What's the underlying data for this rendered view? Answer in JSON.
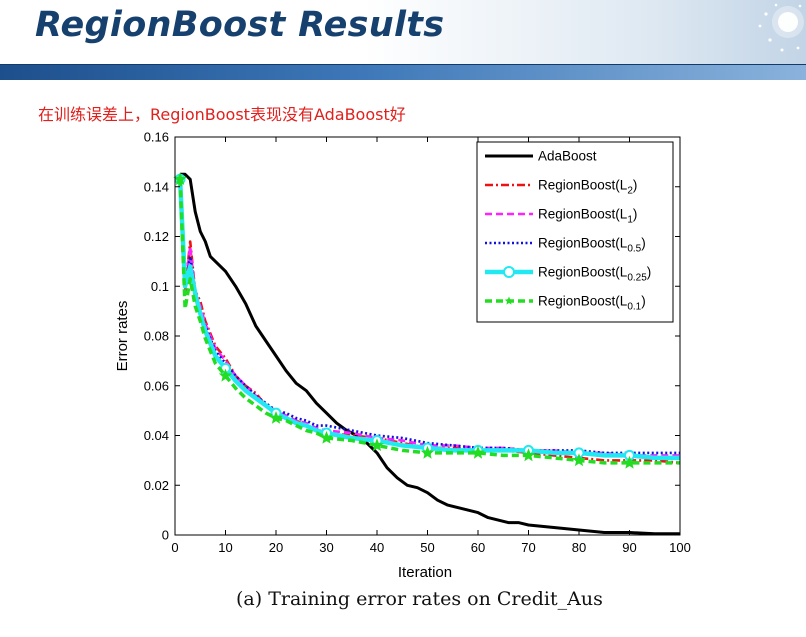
{
  "slide": {
    "title": "RegionBoost Results",
    "subtitle": "在训练误差上，RegionBoost表现没有AdaBoost好",
    "caption": "(a) Training error rates on Credit_Aus"
  },
  "chart_data": {
    "type": "line",
    "title": "",
    "xlabel": "Iteration",
    "ylabel": "Error rates",
    "xlim": [
      0,
      100
    ],
    "ylim": [
      0,
      0.16
    ],
    "xticks": [
      0,
      10,
      20,
      30,
      40,
      50,
      60,
      70,
      80,
      90,
      100
    ],
    "yticks": [
      0,
      0.02,
      0.04,
      0.06,
      0.08,
      0.1,
      0.12,
      0.14,
      0.16
    ],
    "ytick_labels": [
      "0",
      "0.02",
      "0.04",
      "0.06",
      "0.08",
      "0.1",
      "0.12",
      "0.14",
      "0.16"
    ],
    "grid": false,
    "legend_position": "top-right",
    "series": [
      {
        "name": "AdaBoost",
        "legend": {
          "base": "AdaBoost",
          "sub": ""
        },
        "color": "#000000",
        "style": "solid",
        "marker": "none",
        "x": [
          1,
          2,
          3,
          4,
          5,
          6,
          7,
          8,
          10,
          12,
          14,
          16,
          18,
          20,
          22,
          24,
          26,
          28,
          30,
          32,
          34,
          36,
          38,
          40,
          42,
          44,
          46,
          48,
          50,
          52,
          54,
          56,
          58,
          60,
          62,
          64,
          66,
          68,
          70,
          75,
          80,
          85,
          90,
          95,
          100
        ],
        "y": [
          0.145,
          0.145,
          0.143,
          0.13,
          0.122,
          0.118,
          0.112,
          0.11,
          0.106,
          0.1,
          0.093,
          0.084,
          0.078,
          0.072,
          0.066,
          0.061,
          0.058,
          0.053,
          0.049,
          0.045,
          0.042,
          0.04,
          0.037,
          0.033,
          0.027,
          0.023,
          0.02,
          0.019,
          0.017,
          0.014,
          0.012,
          0.011,
          0.01,
          0.009,
          0.007,
          0.006,
          0.005,
          0.005,
          0.004,
          0.003,
          0.002,
          0.001,
          0.001,
          0.0005,
          0.0005
        ]
      },
      {
        "name": "RegionBoost(L2)",
        "legend": {
          "base": "RegionBoost(L",
          "sub": "2"
        },
        "color": "#ee1111",
        "style": "dashdot",
        "marker": "none",
        "x": [
          1,
          2,
          3,
          4,
          5,
          6,
          8,
          10,
          12,
          14,
          16,
          18,
          20,
          22,
          24,
          26,
          28,
          30,
          35,
          40,
          45,
          50,
          55,
          60,
          65,
          70,
          75,
          80,
          85,
          90,
          95,
          100
        ],
        "y": [
          0.143,
          0.098,
          0.118,
          0.098,
          0.094,
          0.086,
          0.076,
          0.071,
          0.064,
          0.06,
          0.057,
          0.052,
          0.049,
          0.047,
          0.046,
          0.044,
          0.042,
          0.041,
          0.04,
          0.039,
          0.037,
          0.035,
          0.035,
          0.034,
          0.034,
          0.033,
          0.032,
          0.031,
          0.03,
          0.03,
          0.03,
          0.029
        ]
      },
      {
        "name": "RegionBoost(L1)",
        "legend": {
          "base": "RegionBoost(L",
          "sub": "1"
        },
        "color": "#ff22ff",
        "style": "dashed",
        "marker": "none",
        "x": [
          1,
          2,
          3,
          4,
          5,
          6,
          8,
          10,
          12,
          14,
          16,
          18,
          20,
          22,
          24,
          26,
          28,
          30,
          35,
          40,
          45,
          50,
          55,
          60,
          65,
          70,
          75,
          80,
          85,
          90,
          95,
          100
        ],
        "y": [
          0.143,
          0.099,
          0.116,
          0.097,
          0.092,
          0.085,
          0.075,
          0.07,
          0.064,
          0.06,
          0.056,
          0.052,
          0.05,
          0.048,
          0.046,
          0.045,
          0.043,
          0.042,
          0.041,
          0.039,
          0.038,
          0.036,
          0.036,
          0.035,
          0.035,
          0.034,
          0.034,
          0.033,
          0.033,
          0.032,
          0.032,
          0.032
        ]
      },
      {
        "name": "RegionBoost(L0.5)",
        "legend": {
          "base": "RegionBoost(L",
          "sub": "0.5"
        },
        "color": "#1111dd",
        "style": "dotted",
        "marker": "none",
        "x": [
          1,
          2,
          3,
          4,
          5,
          6,
          8,
          10,
          12,
          14,
          16,
          18,
          20,
          22,
          24,
          26,
          28,
          30,
          35,
          40,
          45,
          50,
          55,
          60,
          65,
          70,
          75,
          80,
          85,
          90,
          95,
          100
        ],
        "y": [
          0.143,
          0.1,
          0.112,
          0.098,
          0.09,
          0.084,
          0.074,
          0.069,
          0.064,
          0.06,
          0.056,
          0.053,
          0.05,
          0.049,
          0.047,
          0.046,
          0.044,
          0.044,
          0.042,
          0.04,
          0.039,
          0.037,
          0.036,
          0.035,
          0.035,
          0.034,
          0.034,
          0.034,
          0.033,
          0.033,
          0.033,
          0.033
        ]
      },
      {
        "name": "RegionBoost(L0.25)",
        "legend": {
          "base": "RegionBoost(L",
          "sub": "0.25"
        },
        "color": "#22e8f2",
        "style": "solid",
        "marker": "circle",
        "x": [
          1,
          2,
          3,
          4,
          5,
          6,
          8,
          10,
          12,
          14,
          16,
          18,
          20,
          22,
          24,
          26,
          28,
          30,
          35,
          40,
          45,
          50,
          55,
          60,
          65,
          70,
          75,
          80,
          85,
          90,
          95,
          100
        ],
        "y": [
          0.143,
          0.1,
          0.108,
          0.097,
          0.089,
          0.082,
          0.072,
          0.067,
          0.062,
          0.058,
          0.055,
          0.052,
          0.049,
          0.047,
          0.045,
          0.044,
          0.042,
          0.041,
          0.039,
          0.038,
          0.036,
          0.035,
          0.034,
          0.034,
          0.034,
          0.034,
          0.033,
          0.033,
          0.032,
          0.032,
          0.031,
          0.031
        ],
        "marker_x": [
          1,
          10,
          20,
          30,
          40,
          50,
          60,
          70,
          80,
          90
        ]
      },
      {
        "name": "RegionBoost(L0.1)",
        "legend": {
          "base": "RegionBoost(L",
          "sub": "0.1"
        },
        "color": "#22dd22",
        "style": "dashed",
        "marker": "star",
        "x": [
          1,
          2,
          3,
          4,
          5,
          6,
          8,
          10,
          12,
          14,
          16,
          18,
          20,
          22,
          24,
          26,
          28,
          30,
          35,
          40,
          45,
          50,
          55,
          60,
          65,
          70,
          75,
          80,
          85,
          90,
          95,
          100
        ],
        "y": [
          0.143,
          0.091,
          0.103,
          0.092,
          0.086,
          0.079,
          0.069,
          0.064,
          0.059,
          0.055,
          0.052,
          0.049,
          0.047,
          0.046,
          0.044,
          0.042,
          0.041,
          0.039,
          0.038,
          0.036,
          0.034,
          0.033,
          0.033,
          0.033,
          0.032,
          0.032,
          0.031,
          0.03,
          0.029,
          0.029,
          0.029,
          0.029
        ],
        "marker_x": [
          1,
          10,
          20,
          30,
          40,
          50,
          60,
          70,
          80,
          90
        ]
      }
    ]
  }
}
